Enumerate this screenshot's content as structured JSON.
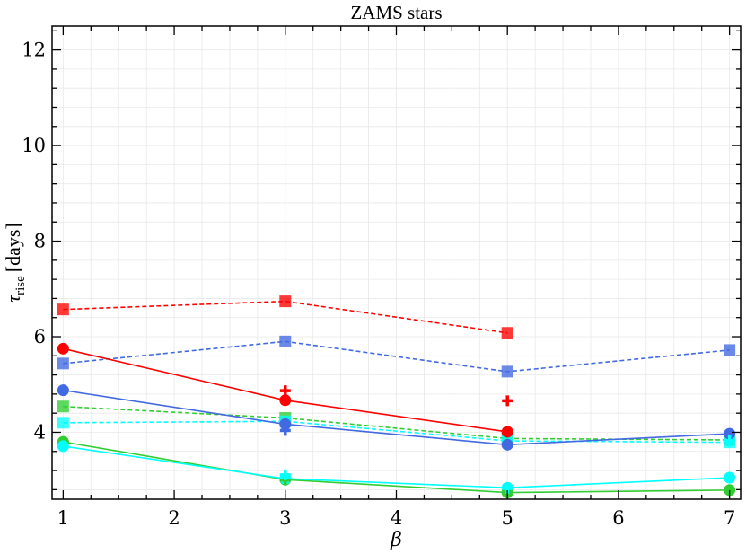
{
  "chart_data": {
    "type": "line",
    "title": "ZAMS stars",
    "xlabel": "β",
    "ylabel_symbol": "τ",
    "ylabel_subscript": "rise",
    "ylabel_unit": "[days]",
    "xlim": [
      0.9,
      7.1
    ],
    "ylim": [
      2.6,
      12.5
    ],
    "xticks": [
      1,
      2,
      3,
      4,
      5,
      6,
      7
    ],
    "yticks": [
      4,
      6,
      8,
      10,
      12
    ],
    "grid": true,
    "series": [
      {
        "x": [
          1,
          3,
          5
        ],
        "y": [
          6.57,
          6.74,
          6.08
        ],
        "color": "#ff0000",
        "linestyle": "dashed",
        "marker": "square"
      },
      {
        "x": [
          1,
          3,
          5,
          7
        ],
        "y": [
          5.44,
          5.9,
          5.27,
          5.72
        ],
        "color": "#4169e1",
        "linestyle": "dashed",
        "marker": "square"
      },
      {
        "x": [
          1,
          3,
          5,
          7
        ],
        "y": [
          4.54,
          4.3,
          3.87,
          3.84
        ],
        "color": "#32cd32",
        "linestyle": "dashed",
        "marker": "square"
      },
      {
        "x": [
          1,
          3,
          5,
          7
        ],
        "y": [
          4.2,
          4.23,
          3.82,
          3.79
        ],
        "color": "#00ffff",
        "linestyle": "dashed",
        "marker": "square"
      },
      {
        "x": [
          1,
          3,
          5
        ],
        "y": [
          5.75,
          4.67,
          4.01
        ],
        "color": "#ff0000",
        "linestyle": "solid",
        "marker": "circle"
      },
      {
        "x": [
          1,
          3,
          5,
          7
        ],
        "y": [
          4.88,
          4.17,
          3.74,
          3.97
        ],
        "color": "#4169e1",
        "linestyle": "solid",
        "marker": "circle"
      },
      {
        "x": [
          1,
          3,
          5,
          7
        ],
        "y": [
          3.8,
          3.01,
          2.74,
          2.79
        ],
        "color": "#32cd32",
        "linestyle": "solid",
        "marker": "circle"
      },
      {
        "x": [
          1,
          3,
          5,
          7
        ],
        "y": [
          3.71,
          3.03,
          2.84,
          3.05
        ],
        "color": "#00ffff",
        "linestyle": "solid",
        "marker": "circle"
      },
      {
        "x": [
          3,
          5
        ],
        "y": [
          4.87,
          4.66
        ],
        "color": "#ff0000",
        "linestyle": "none",
        "marker": "plus"
      },
      {
        "x": [
          3
        ],
        "y": [
          4.04
        ],
        "color": "#4169e1",
        "linestyle": "none",
        "marker": "plus"
      },
      {
        "x": [
          3,
          5,
          7
        ],
        "y": [
          3.0,
          2.76,
          2.8
        ],
        "color": "#32cd32",
        "linestyle": "none",
        "marker": "plus"
      },
      {
        "x": [
          3,
          5,
          7
        ],
        "y": [
          3.11,
          2.83,
          3.82
        ],
        "color": "#00ffff",
        "linestyle": "none",
        "marker": "plus"
      }
    ]
  }
}
